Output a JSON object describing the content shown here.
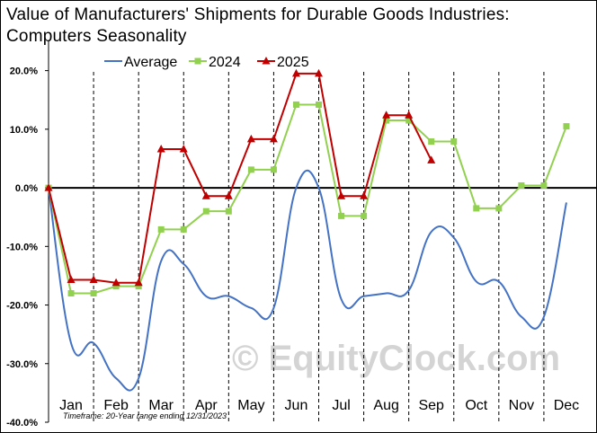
{
  "title_line1": "Value of Manufacturers'  Shipments  for Durable Goods Industries:",
  "title_line2": "Computers  Seasonality",
  "watermark": "© EquityClock.com",
  "footnote": "Timeframe: 20-Year range ending 12/31/2023",
  "colors": {
    "average": "#4472C4",
    "y2024": "#92D050",
    "y2025": "#C00000"
  },
  "chart_data": {
    "type": "line",
    "title": "Value of Manufacturers' Shipments for Durable Goods Industries: Computers Seasonality",
    "xlabel": "",
    "ylabel": "",
    "ylim": [
      -0.4,
      0.25
    ],
    "y_ticks": [
      -0.4,
      -0.3,
      -0.2,
      -0.1,
      0.0,
      0.1,
      0.2
    ],
    "y_tick_labels": [
      "-40.0%",
      "-30.0%",
      "-20.0%",
      "-10.0%",
      "0.0%",
      "10.0%",
      "20.0%"
    ],
    "months": [
      "Jan",
      "Feb",
      "Mar",
      "Apr",
      "May",
      "Jun",
      "Jul",
      "Aug",
      "Sep",
      "Oct",
      "Nov",
      "Dec"
    ],
    "legend_position": "top",
    "grid": "dashed vertical month boundaries",
    "series": [
      {
        "name": "Average",
        "style": "smooth line",
        "x": [
          0,
          0.5,
          1,
          1.5,
          2,
          2.5,
          3,
          3.5,
          4,
          4.5,
          5,
          5.5,
          6,
          6.5,
          7,
          7.5,
          8,
          8.5,
          9,
          9.5,
          10,
          10.5,
          11,
          11.5
        ],
        "values": [
          0.0,
          -0.265,
          -0.265,
          -0.325,
          -0.325,
          -0.125,
          -0.13,
          -0.185,
          -0.185,
          -0.205,
          -0.205,
          0.0,
          0.0,
          -0.19,
          -0.185,
          -0.18,
          -0.175,
          -0.075,
          -0.085,
          -0.16,
          -0.16,
          -0.22,
          -0.22,
          -0.025
        ]
      },
      {
        "name": "2024",
        "style": "line with square markers",
        "x": [
          0,
          0.5,
          1,
          1.5,
          2,
          2.5,
          3,
          3.5,
          4,
          4.5,
          5,
          5.5,
          6,
          6.5,
          7,
          7.5,
          8,
          8.5,
          9,
          9.5,
          10,
          10.5,
          11,
          11.5
        ],
        "values": [
          0.0,
          -0.18,
          -0.18,
          -0.168,
          -0.168,
          -0.071,
          -0.071,
          -0.04,
          -0.04,
          0.031,
          0.031,
          0.142,
          0.142,
          -0.048,
          -0.048,
          0.115,
          0.115,
          0.079,
          0.079,
          -0.035,
          -0.035,
          0.004,
          0.004,
          0.105
        ]
      },
      {
        "name": "2025",
        "style": "line with triangle markers",
        "x": [
          0,
          0.5,
          1,
          1.5,
          2,
          2.5,
          3,
          3.5,
          4,
          4.5,
          5,
          5.5,
          6,
          6.5,
          7,
          7.5,
          8,
          8.5
        ],
        "values": [
          0.0,
          -0.157,
          -0.157,
          -0.162,
          -0.162,
          0.066,
          0.066,
          -0.014,
          -0.014,
          0.083,
          0.083,
          0.195,
          0.195,
          -0.014,
          -0.014,
          0.124,
          0.124,
          0.047
        ]
      }
    ]
  }
}
